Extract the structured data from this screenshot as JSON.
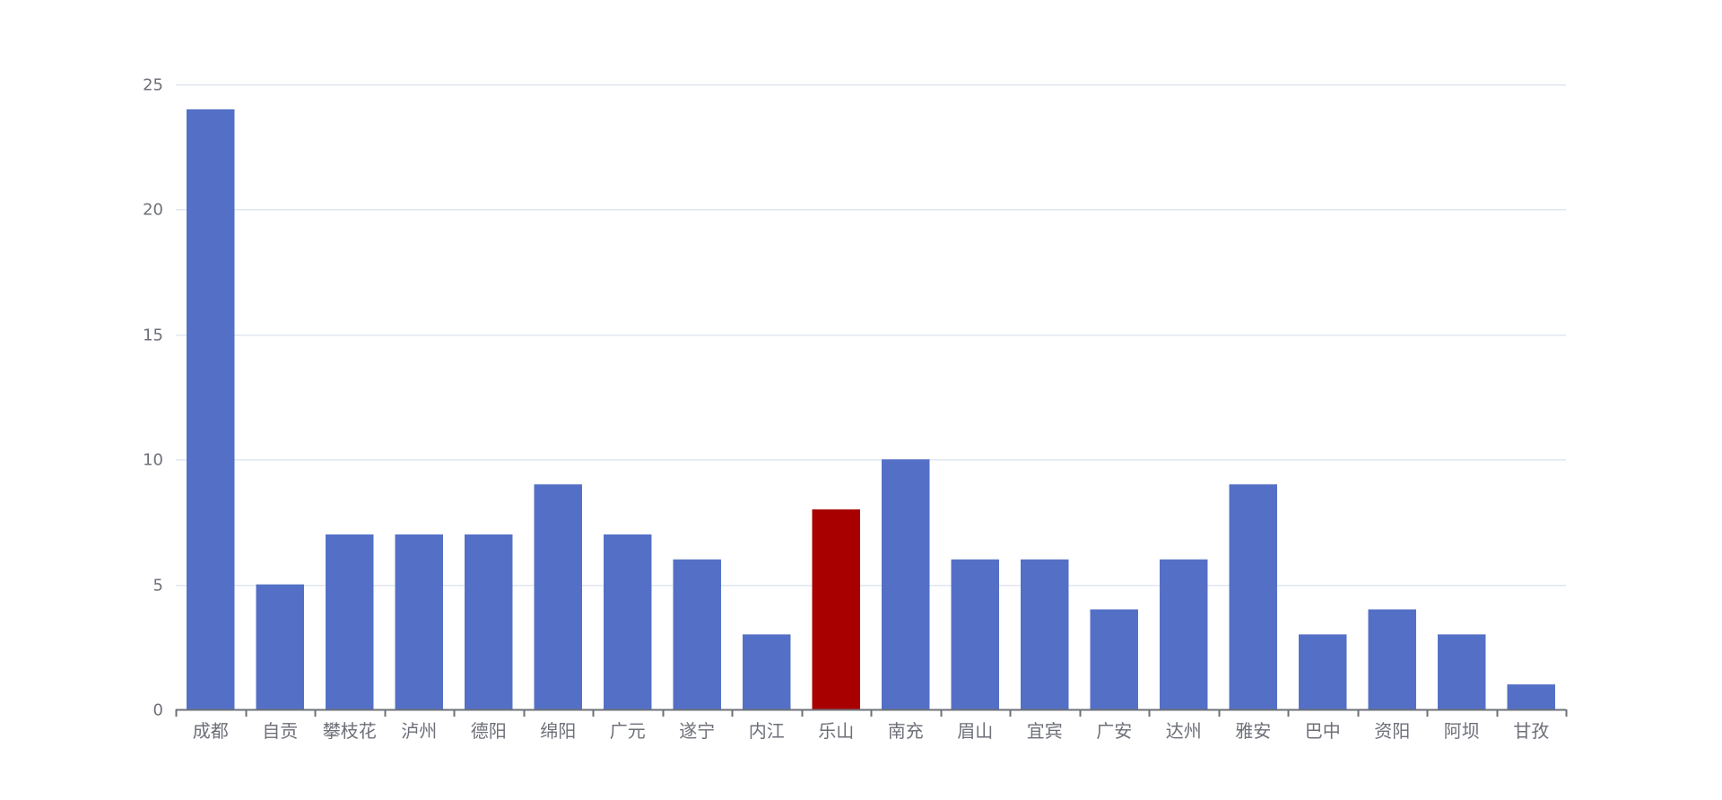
{
  "chart_data": {
    "type": "bar",
    "categories": [
      "成都",
      "自贡",
      "攀枝花",
      "泸州",
      "德阳",
      "绵阳",
      "广元",
      "遂宁",
      "内江",
      "乐山",
      "南充",
      "眉山",
      "宜宾",
      "广安",
      "达州",
      "雅安",
      "巴中",
      "资阳",
      "阿坝",
      "甘孜"
    ],
    "values": [
      24,
      5,
      7,
      7,
      7,
      9,
      7,
      6,
      3,
      8,
      10,
      6,
      6,
      4,
      6,
      9,
      3,
      4,
      3,
      1
    ],
    "highlight_index": 9,
    "title": "",
    "xlabel": "",
    "ylabel": "",
    "ylim": [
      0,
      25
    ],
    "yticks": [
      0,
      5,
      10,
      15,
      20,
      25
    ],
    "grid": true,
    "legend": "none",
    "colors": {
      "bar": "#5470c6",
      "highlight": "#a80000",
      "grid": "#e0e6f1",
      "axis": "#6e7079",
      "label": "#6e7079"
    }
  }
}
